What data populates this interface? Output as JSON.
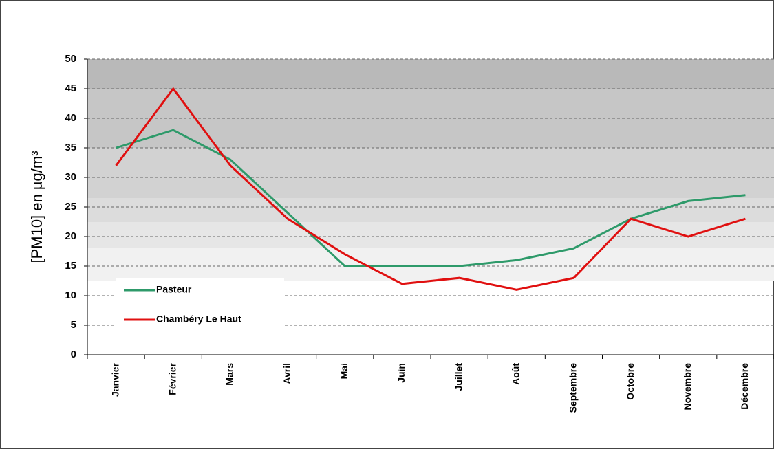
{
  "chart_data": {
    "type": "line",
    "y_label": "[PM10] en µg/m³",
    "categories": [
      "Janvier",
      "Février",
      "Mars",
      "Avril",
      "Mai",
      "Juin",
      "Juillet",
      "Août",
      "Septembre",
      "Octobre",
      "Novembre",
      "Décembre"
    ],
    "series": [
      {
        "name": "Pasteur",
        "color": "#2e9a6a",
        "values": [
          35,
          38,
          33,
          24,
          15,
          15,
          15,
          16,
          18,
          23,
          26,
          27
        ]
      },
      {
        "name": "Chambéry Le Haut",
        "color": "#e01010",
        "values": [
          32,
          45,
          32,
          23,
          17,
          12,
          13,
          11,
          13,
          23,
          20,
          23
        ]
      }
    ],
    "ylim": [
      0,
      50
    ],
    "yticks": [
      0,
      5,
      10,
      15,
      20,
      25,
      30,
      35,
      40,
      45,
      50
    ],
    "grid": true
  }
}
